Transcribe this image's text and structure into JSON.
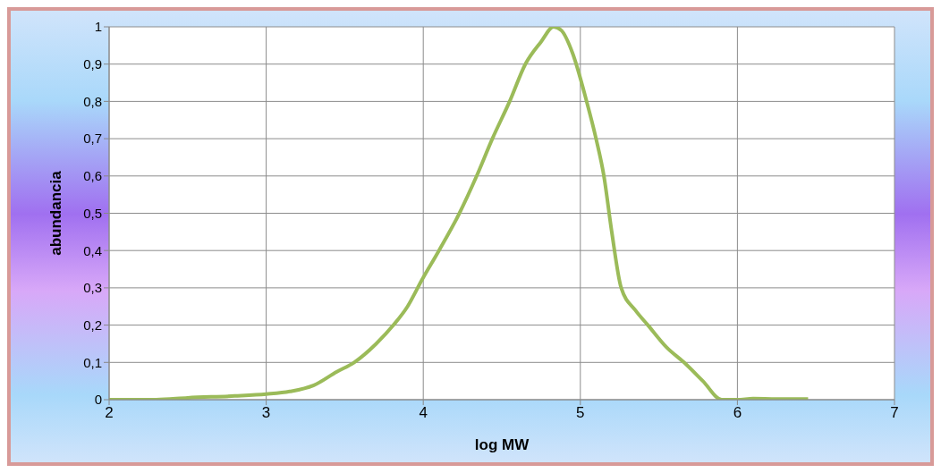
{
  "chart_data": {
    "type": "line",
    "xlabel": "log MW",
    "ylabel": "abundancia",
    "series": [
      {
        "color": "#9bbb59",
        "x": [
          2,
          2.3,
          2.5,
          2.8,
          3,
          3.15,
          3.3,
          3.45,
          3.56,
          3.7,
          3.81,
          3.9,
          3.99,
          4.1,
          4.23,
          4.34,
          4.44,
          4.55,
          4.65,
          4.75,
          4.83,
          4.88,
          4.95,
          5.04,
          5.1,
          5.15,
          5.2,
          5.26,
          5.35,
          5.43,
          5.55,
          5.66,
          5.78,
          5.9,
          6,
          6.1,
          6.25,
          6.45
        ],
        "values": [
          0,
          0,
          0.005,
          0.01,
          0.015,
          0.022,
          0.038,
          0.075,
          0.1,
          0.15,
          0.2,
          0.25,
          0.32,
          0.4,
          0.5,
          0.6,
          0.7,
          0.8,
          0.9,
          0.96,
          1,
          0.99,
          0.93,
          0.8,
          0.7,
          0.6,
          0.45,
          0.3,
          0.24,
          0.2,
          0.14,
          0.1,
          0.05,
          0,
          0,
          0.003,
          0.002,
          0.002
        ]
      }
    ],
    "xlim": [
      2,
      7
    ],
    "xticks": [
      2,
      3,
      4,
      5,
      6,
      7
    ],
    "ylim": [
      0,
      1
    ],
    "yticks": [
      0,
      {
        "value": 0.1,
        "label": "0,1"
      },
      {
        "value": 0.2,
        "label": "0,2"
      },
      {
        "value": 0.3,
        "label": "0,3"
      },
      {
        "value": 0.4,
        "label": "0,4"
      },
      {
        "value": 0.5,
        "label": "0,5"
      },
      {
        "value": 0.6,
        "label": "0,6"
      },
      {
        "value": 0.7,
        "label": "0,7"
      },
      {
        "value": 0.8,
        "label": "0,8"
      },
      {
        "value": 0.9,
        "label": "0,9"
      },
      1
    ],
    "grid": true,
    "line_style": "solid"
  }
}
